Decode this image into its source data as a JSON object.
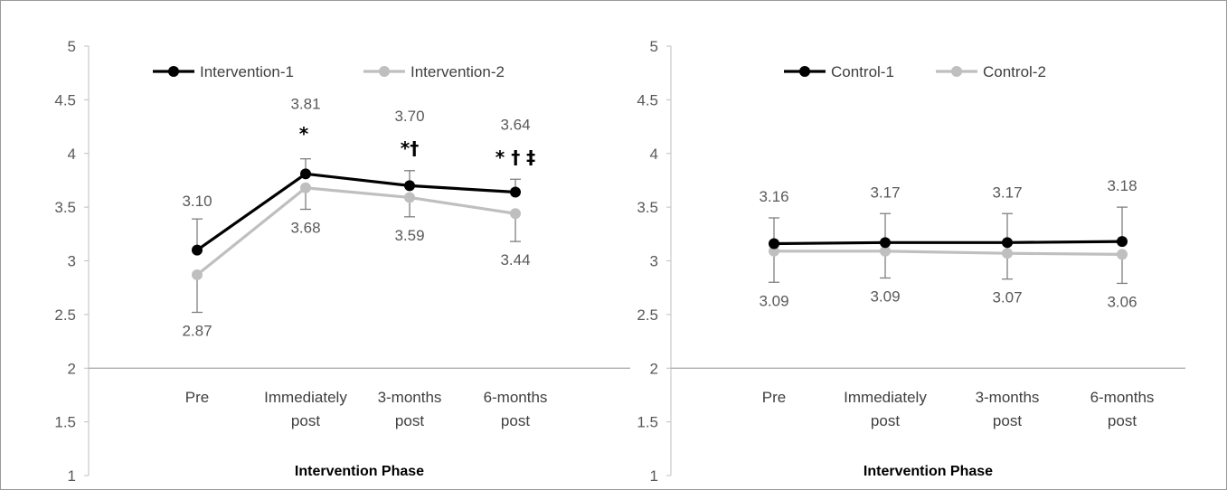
{
  "chart_data": [
    {
      "type": "line",
      "categories": [
        [
          "Pre"
        ],
        [
          "Immediately",
          "post"
        ],
        [
          "3-months",
          "post"
        ],
        [
          "6-months",
          "post"
        ]
      ],
      "series": [
        {
          "name": "Intervention-1",
          "color": "#000000",
          "values": [
            3.1,
            3.81,
            3.7,
            3.64
          ],
          "labels": [
            "3.10",
            "3.81",
            "3.70",
            "3.64"
          ],
          "label_pos": "above",
          "err_plus": [
            0.29,
            0.14,
            0.14,
            0.12
          ],
          "err_minus": [
            0,
            0,
            0,
            0
          ]
        },
        {
          "name": "Intervention-2",
          "color": "#bfbfbf",
          "values": [
            2.87,
            3.68,
            3.59,
            3.44
          ],
          "labels": [
            "2.87",
            "3.68",
            "3.59",
            "3.44"
          ],
          "label_pos": "below",
          "err_plus": [
            0,
            0,
            0,
            0
          ],
          "err_minus": [
            0.35,
            0.2,
            0.18,
            0.26
          ]
        }
      ],
      "significance": [
        "",
        "*",
        "*†",
        "* † ‡"
      ],
      "xlabel": "Intervention Phase",
      "ylabel": "",
      "ylim": [
        1,
        5
      ],
      "yticks": [
        "1",
        "1.5",
        "2",
        "2.5",
        "3",
        "3.5",
        "4",
        "4.5",
        "5"
      ],
      "x_axis_crosses_at": 2,
      "legend": "top-left",
      "grid": false
    },
    {
      "type": "line",
      "categories": [
        [
          "Pre"
        ],
        [
          "Immediately",
          "post"
        ],
        [
          "3-months",
          "post"
        ],
        [
          "6-months",
          "post"
        ]
      ],
      "series": [
        {
          "name": "Control-1",
          "color": "#000000",
          "values": [
            3.16,
            3.17,
            3.17,
            3.18
          ],
          "labels": [
            "3.16",
            "3.17",
            "3.17",
            "3.18"
          ],
          "label_pos": "above",
          "err_plus": [
            0.24,
            0.27,
            0.27,
            0.32
          ],
          "err_minus": [
            0,
            0,
            0,
            0
          ]
        },
        {
          "name": "Control-2",
          "color": "#bfbfbf",
          "values": [
            3.09,
            3.09,
            3.07,
            3.06
          ],
          "labels": [
            "3.09",
            "3.09",
            "3.07",
            "3.06"
          ],
          "label_pos": "below",
          "err_plus": [
            0,
            0,
            0,
            0
          ],
          "err_minus": [
            0.29,
            0.25,
            0.24,
            0.27
          ]
        }
      ],
      "significance": [
        "",
        "",
        "",
        ""
      ],
      "xlabel": "Intervention Phase",
      "ylabel": "",
      "ylim": [
        1,
        5
      ],
      "yticks": [
        "1",
        "1.5",
        "2",
        "2.5",
        "3",
        "3.5",
        "4",
        "4.5",
        "5"
      ],
      "x_axis_crosses_at": 2,
      "legend": "top-left",
      "grid": false
    }
  ]
}
